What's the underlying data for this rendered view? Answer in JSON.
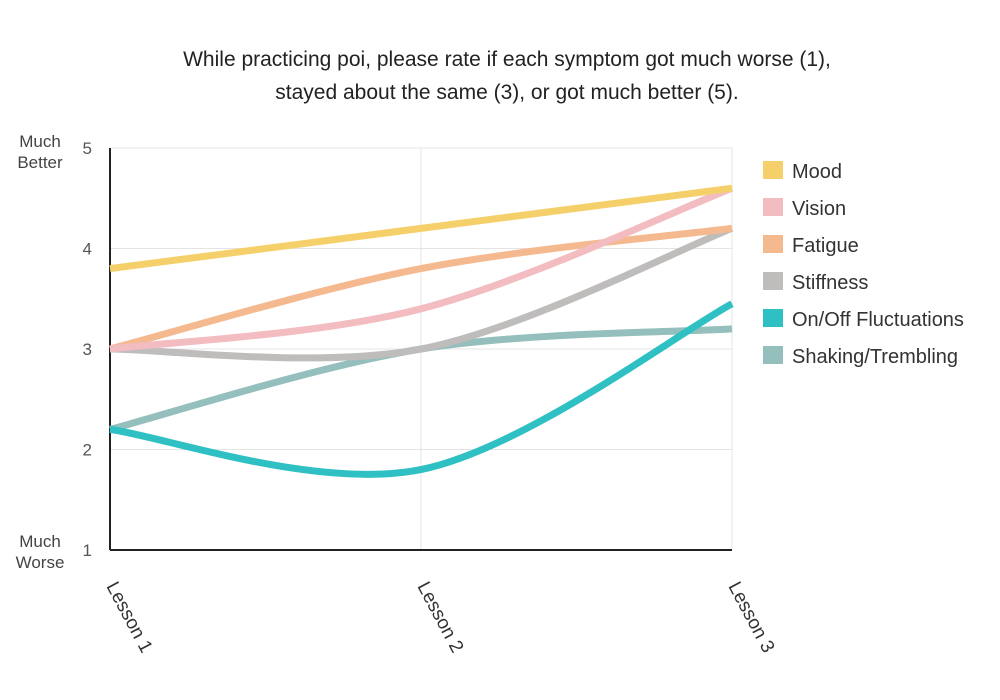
{
  "chart_data": {
    "type": "line",
    "title_lines": [
      "While practicing poi, please rate if each symptom got much worse (1),",
      "stayed about the same (3), or got much better (5)."
    ],
    "categories": [
      "Lesson 1",
      "Lesson 2",
      "Lesson 3"
    ],
    "ylim": [
      1,
      5
    ],
    "yticks": [
      1,
      2,
      3,
      4,
      5
    ],
    "ylabel_top": [
      "Much",
      "Better"
    ],
    "ylabel_bottom": [
      "Much",
      "Worse"
    ],
    "grid": true,
    "legend_position": "right",
    "series": [
      {
        "name": "Mood",
        "color": "#f5d06a",
        "values": [
          3.8,
          4.2,
          4.6
        ]
      },
      {
        "name": "Vision",
        "color": "#f2bcc0",
        "values": [
          3.0,
          3.4,
          4.6
        ]
      },
      {
        "name": "Fatigue",
        "color": "#f5b98f",
        "values": [
          3.0,
          3.8,
          4.2
        ]
      },
      {
        "name": "Stiffness",
        "color": "#bfbcbc",
        "values": [
          3.0,
          3.0,
          4.2
        ]
      },
      {
        "name": "On/Off Fluctuations",
        "color": "#2fc0c3",
        "values": [
          2.2,
          1.8,
          3.45
        ]
      },
      {
        "name": "Shaking/Trembling",
        "color": "#94bfbd",
        "values": [
          2.2,
          3.0,
          3.2
        ]
      }
    ]
  }
}
